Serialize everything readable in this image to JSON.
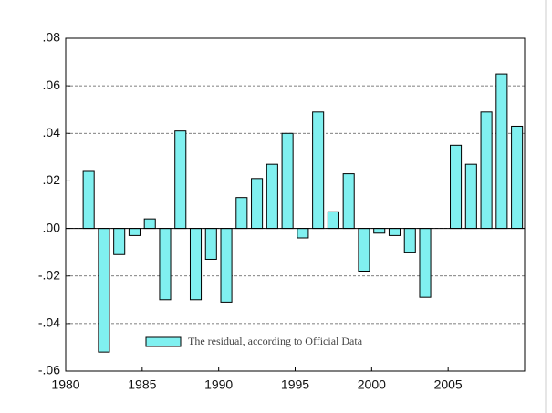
{
  "chart_data": {
    "type": "bar",
    "x": [
      1981,
      1982,
      1983,
      1984,
      1985,
      1986,
      1987,
      1988,
      1989,
      1990,
      1991,
      1992,
      1993,
      1994,
      1995,
      1996,
      1997,
      1998,
      1999,
      2000,
      2001,
      2002,
      2003,
      2004,
      2005,
      2006,
      2007,
      2008,
      2009
    ],
    "series": [
      {
        "name": "The residual, according to Official Data",
        "color": "#80f0f0",
        "values": [
          0.024,
          -0.052,
          -0.011,
          -0.003,
          0.004,
          -0.03,
          0.041,
          -0.03,
          -0.013,
          -0.031,
          0.013,
          0.021,
          0.027,
          0.04,
          -0.004,
          0.049,
          0.007,
          0.023,
          -0.018,
          -0.002,
          -0.003,
          -0.01,
          -0.029,
          0,
          0.035,
          0.027,
          0.049,
          0.065,
          0.043
        ]
      }
    ],
    "xlim": [
      1980,
      2010
    ],
    "xticks": [
      1980,
      1985,
      1990,
      1995,
      2000,
      2005
    ],
    "ylim": [
      -0.06,
      0.08
    ],
    "yticks": [
      {
        "value": -0.06,
        "label": "-.06"
      },
      {
        "value": -0.04,
        "label": "-.04"
      },
      {
        "value": -0.02,
        "label": "-.02"
      },
      {
        "value": 0,
        "label": ".00"
      },
      {
        "value": 0.02,
        "label": ".02"
      },
      {
        "value": 0.04,
        "label": ".04"
      },
      {
        "value": 0.06,
        "label": ".06"
      },
      {
        "value": 0.08,
        "label": ".08"
      }
    ],
    "grid": true,
    "legend": "bottom-left"
  }
}
